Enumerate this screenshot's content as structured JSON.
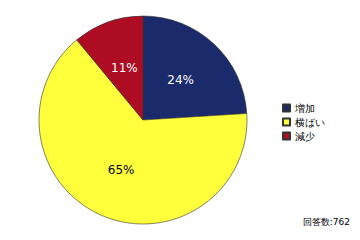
{
  "chart_data": {
    "type": "pie",
    "categories": [
      "増加",
      "横ばい",
      "減少"
    ],
    "values": [
      24,
      65,
      11
    ],
    "value_labels": [
      "24%",
      "65%",
      "11%"
    ],
    "colors": [
      "#1b2a6b",
      "#ffff3c",
      "#ad0c22"
    ],
    "data_labels": true,
    "legend": "right",
    "annotation": "回答数:762"
  }
}
